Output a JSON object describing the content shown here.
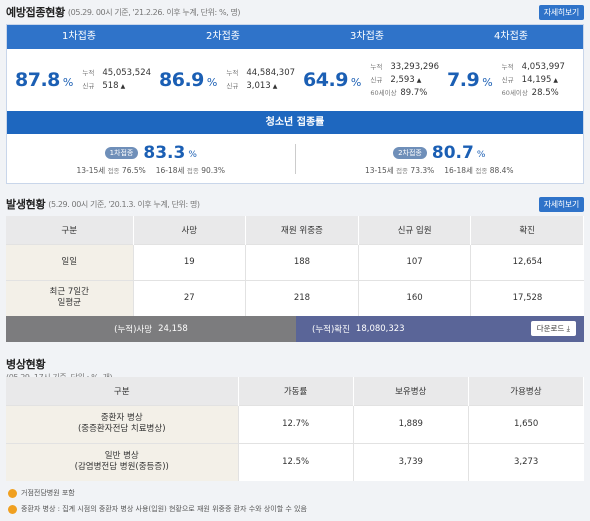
{
  "vaccine": {
    "title": "예방접종현황",
    "subtitle": "(05.29. 00시 기준, '21.2.26. 이후 누계, 단위: %, 명)",
    "detail_label": "자세히보기",
    "tabs": [
      "1차접종",
      "2차접종",
      "3차접종",
      "4차접종"
    ],
    "stats": [
      {
        "pct": "87.8",
        "unit": "%",
        "lines": [
          {
            "label": "누적",
            "value": "45,053,524",
            "arrow": ""
          },
          {
            "label": "신규",
            "value": "518",
            "arrow": "▲"
          }
        ]
      },
      {
        "pct": "86.9",
        "unit": "%",
        "lines": [
          {
            "label": "누적",
            "value": "44,584,307",
            "arrow": ""
          },
          {
            "label": "신규",
            "value": "3,013",
            "arrow": "▲"
          }
        ]
      },
      {
        "pct": "64.9",
        "unit": "%",
        "lines": [
          {
            "label": "누적",
            "value": "33,293,296",
            "arrow": ""
          },
          {
            "label": "신규",
            "value": "2,593",
            "arrow": "▲"
          },
          {
            "label": "60세이상",
            "value": "89.7%",
            "arrow": ""
          }
        ]
      },
      {
        "pct": "7.9",
        "unit": "%",
        "lines": [
          {
            "label": "누적",
            "value": "4,053,997",
            "arrow": ""
          },
          {
            "label": "신규",
            "value": "14,195",
            "arrow": "▲"
          },
          {
            "label": "60세이상",
            "value": "28.5%",
            "arrow": ""
          }
        ]
      }
    ],
    "teen_title": "청소년 접종률",
    "teen": [
      {
        "pill": "1차접종",
        "pct": "83.3",
        "unit": "%",
        "a_label": "13-15세",
        "a_small": "접종",
        "a_val": "76.5%",
        "b_label": "16-18세",
        "b_small": "접종",
        "b_val": "90.3%"
      },
      {
        "pill": "2차접종",
        "pct": "80.7",
        "unit": "%",
        "a_label": "13-15세",
        "a_small": "접종",
        "a_val": "73.3%",
        "b_label": "16-18세",
        "b_small": "접종",
        "b_val": "88.4%"
      }
    ]
  },
  "occurrence": {
    "title": "발생현황",
    "subtitle": "(5.29. 00시 기준, '20.1.3. 이후 누계, 단위: 명)",
    "detail_label": "자세히보기",
    "headers": [
      "구분",
      "사망",
      "재원 위중증",
      "신규 입원",
      "확진"
    ],
    "rows": [
      {
        "label": "일일",
        "cells": [
          "19",
          "188",
          "107",
          "12,654"
        ]
      },
      {
        "label": "최근 7일간\n일평균",
        "cells": [
          "27",
          "218",
          "160",
          "17,528"
        ]
      }
    ],
    "sum_death_label": "(누적)사망",
    "sum_death_value": "24,158",
    "sum_conf_label": "(누적)확진",
    "sum_conf_value": "18,080,323",
    "download_label": "다운로드 ⤓"
  },
  "beds": {
    "title": "병상현황",
    "subtitle": "(05.29. 17시 기준, 단위 : %, 개)",
    "headers": [
      "구분",
      "가동률",
      "보유병상",
      "가용병상"
    ],
    "rows": [
      {
        "label": "중환자 병상\n(중증환자전담 치료병상)",
        "cells": [
          "12.7%",
          "1,889",
          "1,650"
        ]
      },
      {
        "label": "일반 병상\n(감염병전담 병원(중등증))",
        "cells": [
          "12.5%",
          "3,739",
          "3,273"
        ]
      }
    ],
    "notes": [
      "거점전담병원 포함",
      "중환자 병상 : 집계 시점의 중환자 병상 사용(입원) 현황으로 재원 위중증 환자 수와 상이할 수 있음"
    ]
  }
}
